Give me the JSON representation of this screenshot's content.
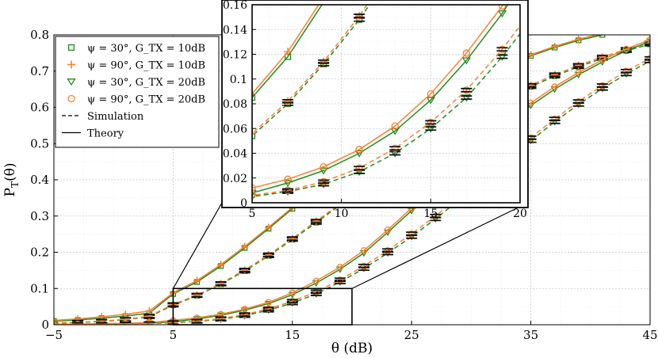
{
  "chart_data": {
    "type": "line",
    "xlabel": "θ (dB)",
    "ylabel": "P_T(θ)",
    "xlim": [
      -5,
      45
    ],
    "ylim": [
      0,
      0.8
    ],
    "xticks": [
      "−5",
      "5",
      "15",
      "25",
      "35",
      "45"
    ],
    "yticks": [
      "0",
      "0.1",
      "0.2",
      "0.3",
      "0.4",
      "0.5",
      "0.6",
      "0.7",
      "0.8"
    ],
    "grid": true,
    "legend_position": "top-left",
    "legend": [
      {
        "label": "ψ = 30°, G_TX = 10dB",
        "marker": "square",
        "color": "#228b22"
      },
      {
        "label": "ψ = 90°, G_TX = 10dB",
        "marker": "plus",
        "color": "#ff7f2a"
      },
      {
        "label": "ψ = 30°, G_TX = 20dB",
        "marker": "triangle-down",
        "color": "#228b22"
      },
      {
        "label": "ψ = 90°, G_TX = 20dB",
        "marker": "circle",
        "color": "#ff7f2a"
      },
      {
        "label": "Simulation",
        "marker": "dashed-line",
        "color": "#000000"
      },
      {
        "label": "Theory",
        "marker": "solid-line",
        "color": "#000000"
      }
    ],
    "series": [
      {
        "name": "ψ = 30°, G_TX = 10dB, Theory",
        "style": "solid",
        "color": "#228b22",
        "marker": "square",
        "x": [
          -5,
          -3,
          -1,
          1,
          3,
          5,
          7,
          9,
          11,
          13,
          15,
          17,
          19,
          21,
          23,
          25,
          27,
          29,
          31,
          33,
          35,
          37,
          39,
          41,
          43,
          45
        ],
        "y": [
          0.01,
          0.013,
          0.018,
          0.024,
          0.032,
          0.085,
          0.118,
          0.162,
          0.212,
          0.265,
          0.32,
          0.375,
          0.43,
          0.482,
          0.53,
          0.575,
          0.615,
          0.652,
          0.685,
          0.715,
          0.742,
          0.765,
          0.785,
          0.8,
          0.815,
          0.828
        ]
      },
      {
        "name": "ψ = 90°, G_TX = 10dB, Theory",
        "style": "solid",
        "color": "#ff7f2a",
        "marker": "plus",
        "x": [
          -5,
          -3,
          -1,
          1,
          3,
          5,
          7,
          9,
          11,
          13,
          15,
          17,
          19,
          21,
          23,
          25,
          27,
          29,
          31,
          33,
          35,
          37,
          39,
          41,
          43,
          45
        ],
        "y": [
          0.012,
          0.016,
          0.022,
          0.029,
          0.038,
          0.088,
          0.122,
          0.166,
          0.216,
          0.269,
          0.324,
          0.379,
          0.433,
          0.485,
          0.533,
          0.578,
          0.618,
          0.655,
          0.688,
          0.718,
          0.745,
          0.768,
          0.788,
          0.803,
          0.818,
          0.83
        ]
      },
      {
        "name": "ψ = 30°, G_TX = 10dB, Simulation",
        "style": "dashed",
        "color": "#228b22",
        "marker": "square",
        "x": [
          -5,
          -3,
          -1,
          1,
          3,
          5,
          7,
          9,
          11,
          13,
          15,
          17,
          19,
          21,
          23,
          25,
          27,
          29,
          31,
          33,
          35,
          37,
          39,
          41,
          43,
          45
        ],
        "y": [
          0.004,
          0.006,
          0.009,
          0.014,
          0.022,
          0.054,
          0.08,
          0.112,
          0.148,
          0.19,
          0.235,
          0.282,
          0.33,
          0.378,
          0.425,
          0.47,
          0.512,
          0.552,
          0.59,
          0.625,
          0.657,
          0.686,
          0.712,
          0.735,
          0.756,
          0.774
        ]
      },
      {
        "name": "ψ = 90°, G_TX = 10dB, Simulation",
        "style": "dashed",
        "color": "#ff7f2a",
        "marker": "plus",
        "x": [
          -5,
          -3,
          -1,
          1,
          3,
          5,
          7,
          9,
          11,
          13,
          15,
          17,
          19,
          21,
          23,
          25,
          27,
          29,
          31,
          33,
          35,
          37,
          39,
          41,
          43,
          45
        ],
        "y": [
          0.005,
          0.007,
          0.01,
          0.015,
          0.024,
          0.056,
          0.082,
          0.114,
          0.151,
          0.193,
          0.238,
          0.286,
          0.334,
          0.382,
          0.429,
          0.474,
          0.516,
          0.556,
          0.594,
          0.629,
          0.661,
          0.69,
          0.716,
          0.739,
          0.76,
          0.778
        ]
      },
      {
        "name": "ψ = 30°, G_TX = 20dB, Theory",
        "style": "solid",
        "color": "#228b22",
        "marker": "triangle-down",
        "x": [
          -5,
          -3,
          -1,
          1,
          3,
          5,
          7,
          9,
          11,
          13,
          15,
          17,
          19,
          21,
          23,
          25,
          27,
          29,
          31,
          33,
          35,
          37,
          39,
          41,
          43,
          45
        ],
        "y": [
          0.001,
          0.001,
          0.002,
          0.003,
          0.004,
          0.008,
          0.016,
          0.026,
          0.04,
          0.058,
          0.083,
          0.115,
          0.153,
          0.198,
          0.255,
          0.315,
          0.378,
          0.44,
          0.5,
          0.555,
          0.605,
          0.65,
          0.69,
          0.725,
          0.756,
          0.782
        ]
      },
      {
        "name": "ψ = 90°, G_TX = 20dB, Theory",
        "style": "solid",
        "color": "#ff7f2a",
        "marker": "circle",
        "x": [
          -5,
          -3,
          -1,
          1,
          3,
          5,
          7,
          9,
          11,
          13,
          15,
          17,
          19,
          21,
          23,
          25,
          27,
          29,
          31,
          33,
          35,
          37,
          39,
          41,
          43,
          45
        ],
        "y": [
          0.001,
          0.002,
          0.003,
          0.004,
          0.006,
          0.012,
          0.019,
          0.029,
          0.043,
          0.062,
          0.088,
          0.121,
          0.159,
          0.205,
          0.262,
          0.322,
          0.385,
          0.447,
          0.507,
          0.562,
          0.612,
          0.657,
          0.696,
          0.731,
          0.761,
          0.787
        ]
      },
      {
        "name": "ψ = 30°, G_TX = 20dB, Simulation",
        "style": "dashed",
        "color": "#228b22",
        "marker": "triangle-down",
        "x": [
          -5,
          -3,
          -1,
          1,
          3,
          5,
          7,
          9,
          11,
          13,
          15,
          17,
          19,
          21,
          23,
          25,
          27,
          29,
          31,
          33,
          35,
          37,
          39,
          41,
          43,
          45
        ],
        "y": [
          0.0,
          0.001,
          0.001,
          0.002,
          0.003,
          0.005,
          0.009,
          0.015,
          0.025,
          0.04,
          0.06,
          0.085,
          0.118,
          0.155,
          0.198,
          0.243,
          0.292,
          0.345,
          0.4,
          0.455,
          0.508,
          0.56,
          0.608,
          0.652,
          0.692,
          0.728
        ]
      },
      {
        "name": "ψ = 90°, G_TX = 20dB, Simulation",
        "style": "dashed",
        "color": "#ff7f2a",
        "marker": "circle",
        "x": [
          -5,
          -3,
          -1,
          1,
          3,
          5,
          7,
          9,
          11,
          13,
          15,
          17,
          19,
          21,
          23,
          25,
          27,
          29,
          31,
          33,
          35,
          37,
          39,
          41,
          43,
          45
        ],
        "y": [
          0.0,
          0.001,
          0.001,
          0.002,
          0.003,
          0.006,
          0.01,
          0.017,
          0.028,
          0.044,
          0.065,
          0.091,
          0.124,
          0.162,
          0.205,
          0.251,
          0.3,
          0.353,
          0.408,
          0.463,
          0.516,
          0.568,
          0.616,
          0.66,
          0.7,
          0.735
        ]
      }
    ],
    "inset": {
      "xlim": [
        5,
        20
      ],
      "ylim": [
        0,
        0.16
      ],
      "xticks": [
        "5",
        "10",
        "15",
        "20"
      ],
      "yticks": [
        "0",
        "0.02",
        "0.04",
        "0.06",
        "0.08",
        "0.1",
        "0.12",
        "0.14",
        "0.16"
      ],
      "zoom_region": {
        "x": [
          5,
          20
        ],
        "y": [
          0,
          0.1
        ]
      }
    }
  }
}
